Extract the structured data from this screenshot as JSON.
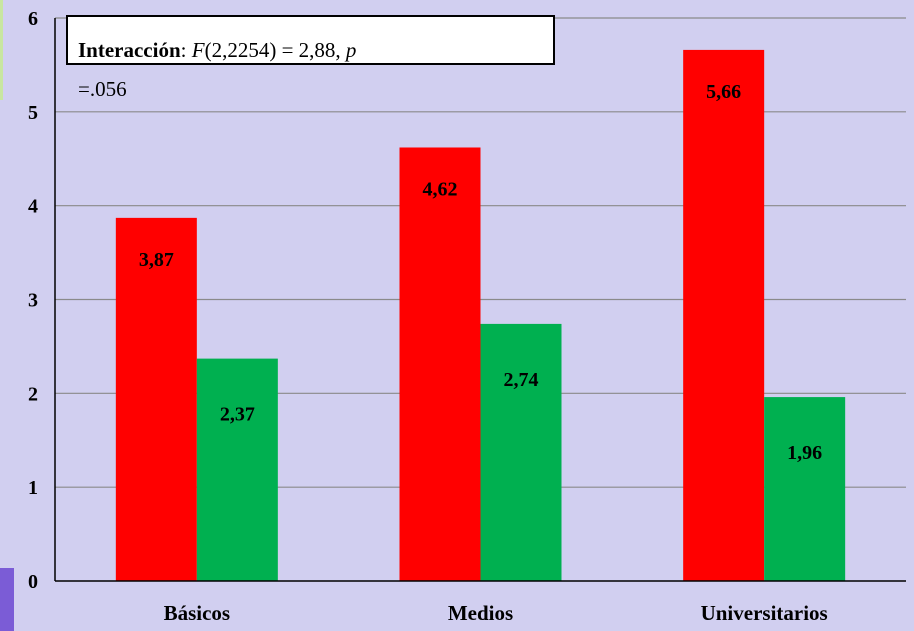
{
  "chart_data": {
    "type": "bar",
    "categories": [
      "Básicos",
      "Medios",
      "Universitarios"
    ],
    "series": [
      {
        "values": [
          3.87,
          4.62,
          5.66
        ],
        "labels": [
          "3,87",
          "4,62",
          "5,66"
        ],
        "color": "#ff0000"
      },
      {
        "values": [
          2.37,
          2.74,
          1.96
        ],
        "labels": [
          "2,37",
          "2,74",
          "1,96"
        ],
        "color": "#00b050"
      }
    ],
    "ylim": [
      0,
      6
    ],
    "yticks": [
      "0",
      "1",
      "2",
      "3",
      "4",
      "5",
      "6"
    ],
    "grid": true,
    "title": "",
    "xlabel": "",
    "ylabel": "",
    "annotation": {
      "label": "Interacción",
      "colon": ": ",
      "stat_symbol": "F",
      "stat_args": "(2,2254) = 2,88, ",
      "p_symbol": "p",
      "p_value": "=.056"
    }
  },
  "colors": {
    "background": "#d1cff0",
    "gridline": "#8a8a8a",
    "axis": "#000000"
  }
}
